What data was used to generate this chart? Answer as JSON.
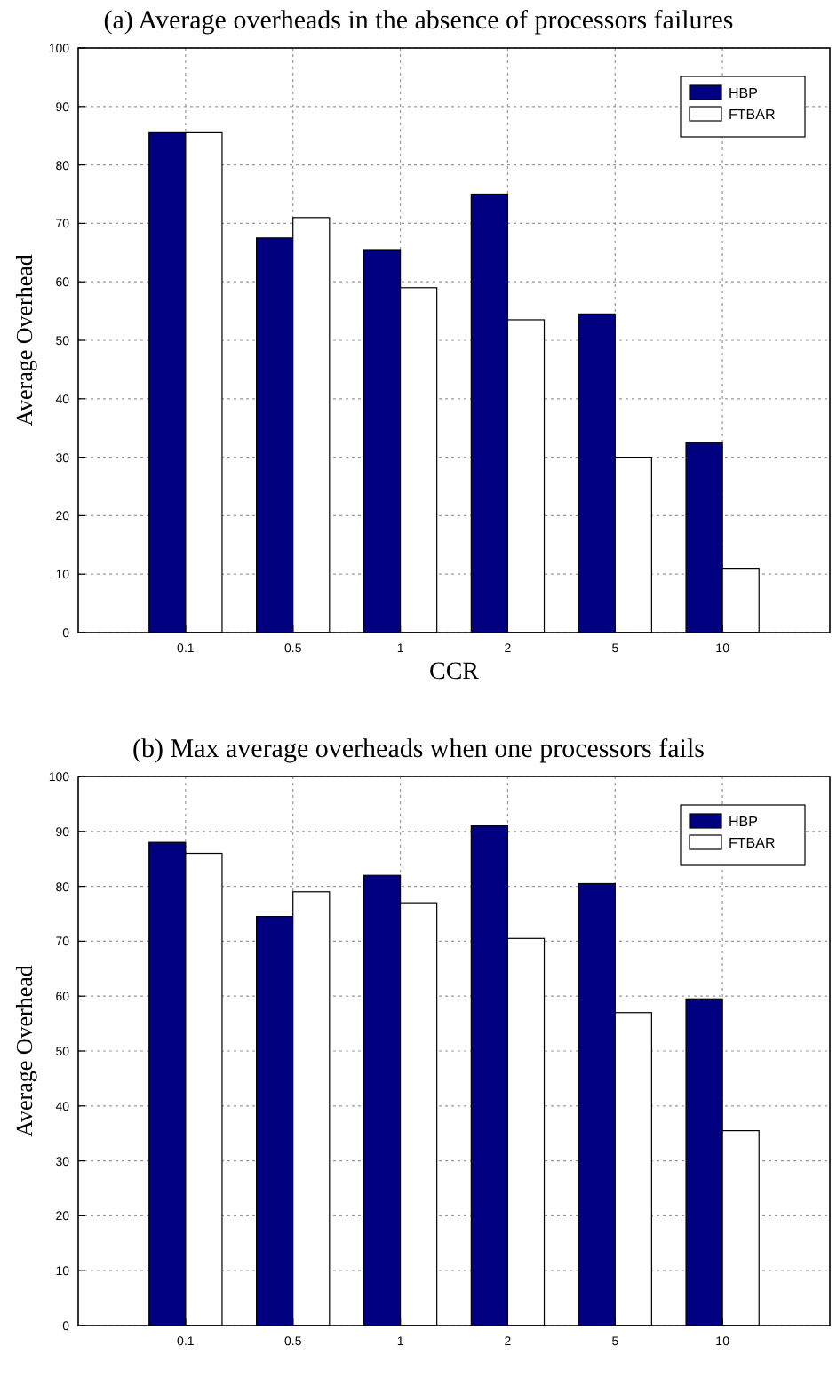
{
  "chart_data": [
    {
      "type": "bar",
      "title": "(a) Average overheads in the absence of processors failures",
      "xlabel": "CCR",
      "ylabel": "Average Overhead",
      "categories": [
        "0.1",
        "0.5",
        "1",
        "2",
        "5",
        "10"
      ],
      "series": [
        {
          "name": "HBP",
          "color": "#000080",
          "values": [
            85.5,
            67.5,
            65.5,
            75,
            54.5,
            32.5
          ]
        },
        {
          "name": "FTBAR",
          "color": "#ffffff",
          "values": [
            85.5,
            71,
            59,
            53.5,
            30,
            11
          ]
        }
      ],
      "ylim": [
        0,
        100
      ],
      "yticks": [
        0,
        10,
        20,
        30,
        40,
        50,
        60,
        70,
        80,
        90,
        100
      ],
      "grid": true,
      "legend": "top right"
    },
    {
      "type": "bar",
      "title": "(b) Max average overheads when one processors fails",
      "ylabel": "Average Overhead",
      "categories": [
        "0.1",
        "0.5",
        "1",
        "2",
        "5",
        "10"
      ],
      "series": [
        {
          "name": "HBP",
          "color": "#000080",
          "values": [
            88,
            74.5,
            82,
            91,
            80.5,
            59.5
          ]
        },
        {
          "name": "FTBAR",
          "color": "#ffffff",
          "values": [
            86,
            79,
            77,
            70.5,
            57,
            35.5
          ]
        }
      ],
      "ylim": [
        0,
        100
      ],
      "yticks": [
        0,
        10,
        20,
        30,
        40,
        50,
        60,
        70,
        80,
        90,
        100
      ],
      "grid": true,
      "legend": "top right"
    }
  ]
}
